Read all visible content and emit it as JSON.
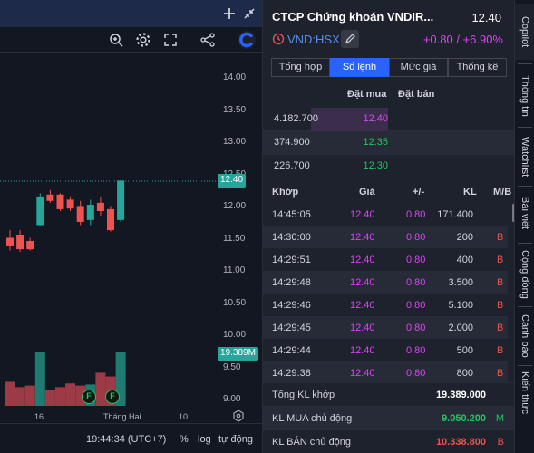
{
  "colors": {
    "up": "#26a69a",
    "down": "#ef5350",
    "ceiling": "#e040fb",
    "green": "#22c55e",
    "red": "#ef5350",
    "accent": "#2962ff"
  },
  "chart": {
    "price_ticks": [
      "14.00",
      "13.50",
      "13.00",
      "12.50",
      "12.00",
      "11.50",
      "11.00",
      "10.50",
      "10.00",
      "9.50",
      "9.00"
    ],
    "last_price": "12.40",
    "volume_label": "19.389M",
    "date_labels": [
      "16",
      "Tháng Hai",
      "10"
    ],
    "markers": [
      "F",
      "F"
    ],
    "footer": {
      "time": "19:44:34 (UTC+7)",
      "percent": "%",
      "log": "log",
      "auto": "tự động"
    }
  },
  "chart_data": {
    "type": "candlestick",
    "y_range": [
      9.0,
      14.0
    ],
    "candles": [
      {
        "o": 11.5,
        "h": 11.62,
        "l": 11.3,
        "c": 11.38
      },
      {
        "o": 11.55,
        "h": 11.62,
        "l": 11.28,
        "c": 11.32
      },
      {
        "o": 11.45,
        "h": 11.5,
        "l": 11.3,
        "c": 11.32
      },
      {
        "o": 11.7,
        "h": 12.2,
        "l": 11.68,
        "c": 12.15
      },
      {
        "o": 12.18,
        "h": 12.25,
        "l": 12.05,
        "c": 12.08
      },
      {
        "o": 12.18,
        "h": 12.2,
        "l": 11.92,
        "c": 11.95
      },
      {
        "o": 12.1,
        "h": 12.15,
        "l": 11.92,
        "c": 11.96
      },
      {
        "o": 12.0,
        "h": 12.08,
        "l": 11.7,
        "c": 11.75
      },
      {
        "o": 11.78,
        "h": 12.1,
        "l": 11.7,
        "c": 12.02
      },
      {
        "o": 12.05,
        "h": 12.15,
        "l": 11.85,
        "c": 11.92
      },
      {
        "o": 11.95,
        "h": 12.0,
        "l": 11.6,
        "c": 11.62
      },
      {
        "o": 11.78,
        "h": 12.4,
        "l": 11.75,
        "c": 12.4
      }
    ],
    "volumes": [
      0.45,
      0.35,
      0.38,
      1.0,
      0.3,
      0.35,
      0.42,
      0.38,
      0.4,
      0.62,
      0.55,
      1.0
    ]
  },
  "quote": {
    "name": "CTCP Chứng khoán VNDIR...",
    "price": "12.40",
    "symbol": "VND:HSX",
    "change": "+0.80 / +6.90%"
  },
  "tabs": [
    "Tổng hợp",
    "Sổ lệnh",
    "Mức giá",
    "Thống kê"
  ],
  "orderbook": {
    "bid_header": "Đặt mua",
    "ask_header": "Đặt bán",
    "rows": [
      {
        "volume": "4.182.700",
        "price": "12.40",
        "type": "ceiling",
        "bar": 0.85
      },
      {
        "volume": "374.900",
        "price": "12.35",
        "type": "green",
        "bar": 0
      },
      {
        "volume": "226.700",
        "price": "12.30",
        "type": "green",
        "bar": 0
      }
    ]
  },
  "trades": {
    "headers": {
      "time": "Khớp",
      "price": "Giá",
      "change": "+/-",
      "volume": "KL",
      "side": "M/B"
    },
    "rows": [
      {
        "time": "14:45:05",
        "price": "12.40",
        "change": "0.80",
        "volume": "171.400",
        "side": ""
      },
      {
        "time": "14:30:00",
        "price": "12.40",
        "change": "0.80",
        "volume": "200",
        "side": "B"
      },
      {
        "time": "14:29:51",
        "price": "12.40",
        "change": "0.80",
        "volume": "400",
        "side": "B"
      },
      {
        "time": "14:29:48",
        "price": "12.40",
        "change": "0.80",
        "volume": "3.500",
        "side": "B"
      },
      {
        "time": "14:29:46",
        "price": "12.40",
        "change": "0.80",
        "volume": "5.100",
        "side": "B"
      },
      {
        "time": "14:29:45",
        "price": "12.40",
        "change": "0.80",
        "volume": "2.000",
        "side": "B"
      },
      {
        "time": "14:29:44",
        "price": "12.40",
        "change": "0.80",
        "volume": "500",
        "side": "B"
      },
      {
        "time": "14:29:38",
        "price": "12.40",
        "change": "0.80",
        "volume": "800",
        "side": "B"
      }
    ]
  },
  "summary": {
    "total_label": "Tổng KL khớp",
    "total_value": "19.389.000",
    "buy_label": "KL MUA chủ động",
    "buy_value": "9.050.200",
    "buy_tag": "M",
    "sell_label": "KL BÁN chủ động",
    "sell_value": "10.338.800",
    "sell_tag": "B"
  },
  "sidebar": [
    "Copilot",
    "Thông tin",
    "Watchlist",
    "Bài viết",
    "Cộng đồng",
    "Cảnh báo",
    "Kiến thức"
  ],
  "icons": {
    "add": "plus-icon",
    "shrink": "collapse-icon",
    "zoom": "zoom-icon",
    "settings": "gear-icon",
    "fullscreen": "fullscreen-icon",
    "share": "share-icon",
    "logo": "brand-logo-icon",
    "alert": "alert-clock-icon",
    "edit": "pencil-icon"
  }
}
